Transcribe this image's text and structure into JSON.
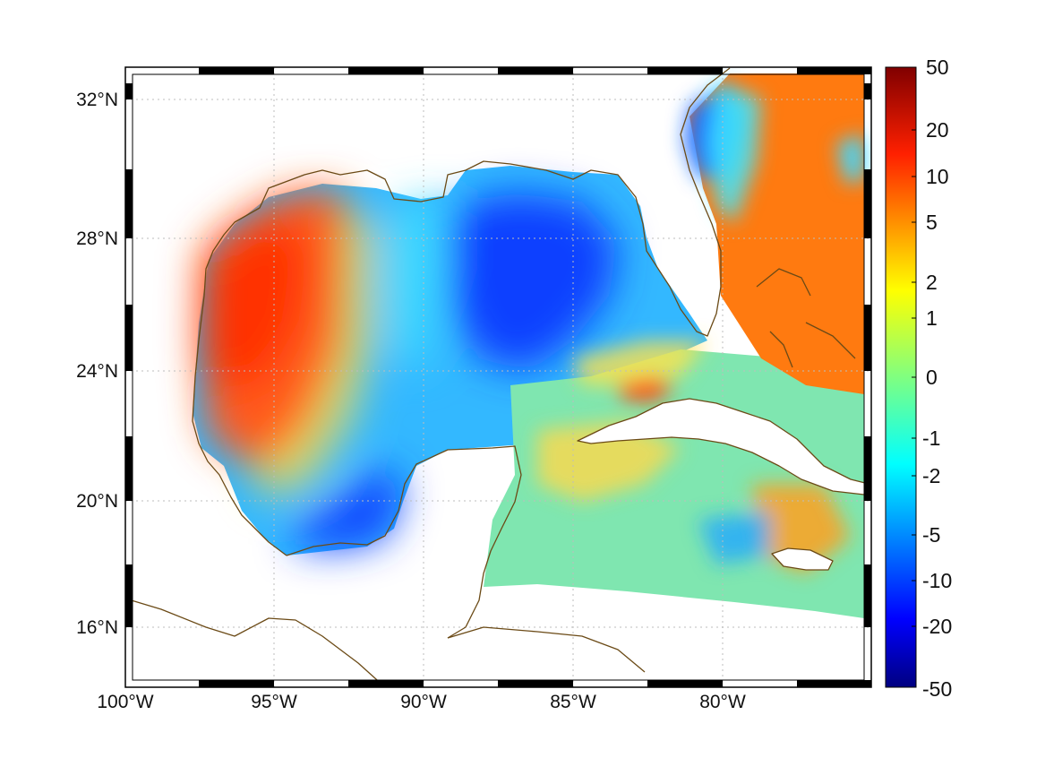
{
  "map": {
    "extent": {
      "lon_min": -100,
      "lon_max": -75,
      "lat_min": 14.3,
      "lat_max": 32.9
    },
    "x_ticks": [
      {
        "lon": -100,
        "label": "100°W"
      },
      {
        "lon": -95,
        "label": "95°W"
      },
      {
        "lon": -90,
        "label": "90°W"
      },
      {
        "lon": -85,
        "label": "85°W"
      },
      {
        "lon": -80,
        "label": "80°W"
      }
    ],
    "y_ticks": [
      {
        "lat": 32,
        "label": "32°N"
      },
      {
        "lat": 28,
        "label": "28°N"
      },
      {
        "lat": 24,
        "label": "24°N"
      },
      {
        "lat": 20,
        "label": "20°N"
      },
      {
        "lat": 16,
        "label": "16°N"
      }
    ],
    "colors": {
      "coastline": "#6b4a16",
      "grid": "#bdbdbd",
      "background": "#ffffff"
    }
  },
  "colorbar": {
    "colormap": "jet",
    "ticks": [
      "50",
      "20",
      "10",
      "5",
      "2",
      "1",
      "0",
      "-1",
      "-2",
      "-5",
      "-10",
      "-20",
      "-50"
    ],
    "stops": [
      "#800000",
      "#ff0000",
      "#ff8000",
      "#ffff00",
      "#80ff80",
      "#00ffff",
      "#0080ff",
      "#0000ff",
      "#000080"
    ]
  }
}
